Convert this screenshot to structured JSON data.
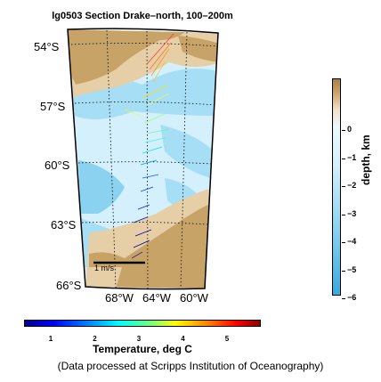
{
  "title": "lg0503 Section Drake–north, 100–200m",
  "map": {
    "lat_labels": [
      "54°S",
      "57°S",
      "60°S",
      "63°S",
      "66°S"
    ],
    "lon_labels": [
      "68°W",
      "64°W",
      "60°W"
    ],
    "scale_label": "1 m/s",
    "colors": {
      "shallow": "#c8a368",
      "shelf": "#e6cfa6",
      "slope": "#a6def5",
      "deep": "#d4f0fc",
      "abyss": "#8ad2f0"
    }
  },
  "depth_colorbar": {
    "title": "depth, km",
    "ticks": [
      "0",
      "−1",
      "−2",
      "−3",
      "−4",
      "−5",
      "−6"
    ]
  },
  "temp_colorbar": {
    "title": "Temperature, deg C",
    "ticks": [
      "1",
      "2",
      "3",
      "4",
      "5"
    ]
  },
  "credit": "(Data processed at Scripps Institution of Oceanography)"
}
